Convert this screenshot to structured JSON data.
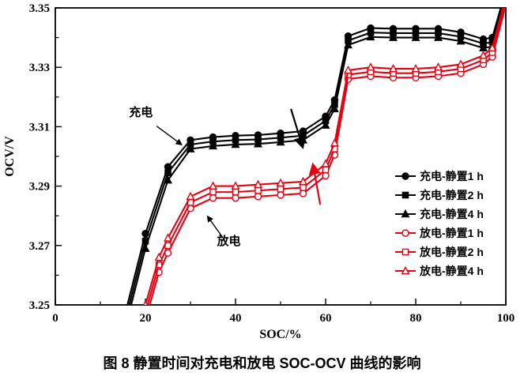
{
  "caption": "图 8  静置时间对充电和放电 SOC-OCV 曲线的影响",
  "annotations": {
    "charge_label": {
      "text": "充电",
      "soc": 19,
      "ocv": 3.3135
    },
    "discharge_label": {
      "text": "放电",
      "soc": 38.5,
      "ocv": 3.2702
    }
  },
  "arrows": [
    {
      "name": "charge-pointer-arrow",
      "color": "#000000",
      "width": 1.4,
      "head": 6,
      "from": [
        22.5,
        3.3102
      ],
      "to": [
        28,
        3.304
      ]
    },
    {
      "name": "discharge-pointer-arrow",
      "color": "#000000",
      "width": 1.4,
      "head": 6,
      "from": [
        37.2,
        3.2726
      ],
      "to": [
        33.8,
        3.2798
      ]
    },
    {
      "name": "rest-time-trend-arrow-charge",
      "color": "#000000",
      "width": 2.2,
      "head": 7,
      "from": [
        52.3,
        3.316
      ],
      "to": [
        54.9,
        3.3032
      ]
    },
    {
      "name": "rest-time-trend-arrow-discharge",
      "color": "#e60012",
      "width": 2.2,
      "head": 7,
      "from": [
        58.8,
        3.2838
      ],
      "to": [
        57.2,
        3.2972
      ]
    }
  ],
  "chart_data": {
    "type": "line",
    "title": "",
    "xlabel": "SOC/%",
    "ylabel": "OCV/V",
    "xlim": [
      0,
      100
    ],
    "ylim": [
      3.25,
      3.35
    ],
    "xticks": [
      0,
      20,
      40,
      60,
      80,
      100
    ],
    "xminor": [
      10,
      30,
      50,
      70,
      90
    ],
    "yticks": [
      3.25,
      3.27,
      3.29,
      3.31,
      3.33,
      3.35
    ],
    "yminor": [
      3.26,
      3.28,
      3.3,
      3.32,
      3.34
    ],
    "grid": false,
    "legend_position": "right-center",
    "series": [
      {
        "name": "充电-静置1 h",
        "color": "#000000",
        "marker": "circle",
        "filled": true,
        "points": [
          [
            16,
            3.25
          ],
          [
            20,
            3.274
          ],
          [
            25,
            3.2965
          ],
          [
            30,
            3.3055
          ],
          [
            35,
            3.3065
          ],
          [
            40,
            3.307
          ],
          [
            45,
            3.3072
          ],
          [
            50,
            3.3078
          ],
          [
            55,
            3.3085
          ],
          [
            60,
            3.3135
          ],
          [
            62,
            3.319
          ],
          [
            65,
            3.3405
          ],
          [
            70,
            3.3432
          ],
          [
            75,
            3.343
          ],
          [
            80,
            3.343
          ],
          [
            85,
            3.343
          ],
          [
            90,
            3.3418
          ],
          [
            95,
            3.3395
          ],
          [
            97,
            3.34
          ],
          [
            100,
            3.356
          ]
        ]
      },
      {
        "name": "充电-静置2 h",
        "color": "#000000",
        "marker": "square",
        "filled": true,
        "points": [
          [
            16,
            3.2475
          ],
          [
            20,
            3.2715
          ],
          [
            25,
            3.2945
          ],
          [
            30,
            3.304
          ],
          [
            35,
            3.305
          ],
          [
            40,
            3.3055
          ],
          [
            45,
            3.3057
          ],
          [
            50,
            3.3063
          ],
          [
            55,
            3.307
          ],
          [
            60,
            3.312
          ],
          [
            62,
            3.3175
          ],
          [
            65,
            3.339
          ],
          [
            70,
            3.3417
          ],
          [
            75,
            3.3415
          ],
          [
            80,
            3.3415
          ],
          [
            85,
            3.3415
          ],
          [
            90,
            3.3403
          ],
          [
            95,
            3.338
          ],
          [
            97,
            3.3385
          ],
          [
            100,
            3.3545
          ]
        ]
      },
      {
        "name": "充电-静置4 h",
        "color": "#000000",
        "marker": "triangle",
        "filled": true,
        "points": [
          [
            16,
            3.245
          ],
          [
            20,
            3.269
          ],
          [
            25,
            3.292
          ],
          [
            30,
            3.3025
          ],
          [
            35,
            3.3035
          ],
          [
            40,
            3.304
          ],
          [
            45,
            3.3042
          ],
          [
            50,
            3.3048
          ],
          [
            55,
            3.3055
          ],
          [
            60,
            3.3105
          ],
          [
            62,
            3.316
          ],
          [
            65,
            3.3375
          ],
          [
            70,
            3.3402
          ],
          [
            75,
            3.34
          ],
          [
            80,
            3.34
          ],
          [
            85,
            3.34
          ],
          [
            90,
            3.3388
          ],
          [
            95,
            3.3365
          ],
          [
            97,
            3.337
          ],
          [
            100,
            3.353
          ]
        ]
      },
      {
        "name": "放电-静置1 h",
        "color": "#e60012",
        "marker": "circle",
        "filled": false,
        "points": [
          [
            20,
            3.245
          ],
          [
            23,
            3.261
          ],
          [
            25,
            3.2675
          ],
          [
            30,
            3.2825
          ],
          [
            35,
            3.286
          ],
          [
            40,
            3.286
          ],
          [
            45,
            3.2865
          ],
          [
            50,
            3.287
          ],
          [
            55,
            3.2875
          ],
          [
            60,
            3.2935
          ],
          [
            62,
            3.3005
          ],
          [
            65,
            3.326
          ],
          [
            70,
            3.327
          ],
          [
            75,
            3.3265
          ],
          [
            80,
            3.3265
          ],
          [
            85,
            3.327
          ],
          [
            90,
            3.328
          ],
          [
            95,
            3.331
          ],
          [
            97,
            3.3335
          ],
          [
            100,
            3.351
          ]
        ]
      },
      {
        "name": "放电-静置2 h",
        "color": "#e60012",
        "marker": "square",
        "filled": false,
        "points": [
          [
            20,
            3.2475
          ],
          [
            23,
            3.2635
          ],
          [
            25,
            3.27
          ],
          [
            30,
            3.2845
          ],
          [
            35,
            3.288
          ],
          [
            40,
            3.288
          ],
          [
            45,
            3.2885
          ],
          [
            50,
            3.289
          ],
          [
            55,
            3.2895
          ],
          [
            60,
            3.2955
          ],
          [
            62,
            3.3025
          ],
          [
            65,
            3.3275
          ],
          [
            70,
            3.3285
          ],
          [
            75,
            3.328
          ],
          [
            80,
            3.328
          ],
          [
            85,
            3.3285
          ],
          [
            90,
            3.3295
          ],
          [
            95,
            3.3325
          ],
          [
            97,
            3.335
          ],
          [
            100,
            3.3525
          ]
        ]
      },
      {
        "name": "放电-静置4 h",
        "color": "#e60012",
        "marker": "triangle",
        "filled": false,
        "points": [
          [
            20,
            3.25
          ],
          [
            23,
            3.266
          ],
          [
            25,
            3.2725
          ],
          [
            30,
            3.2865
          ],
          [
            35,
            3.29
          ],
          [
            40,
            3.29
          ],
          [
            45,
            3.2905
          ],
          [
            50,
            3.291
          ],
          [
            55,
            3.2915
          ],
          [
            60,
            3.2975
          ],
          [
            62,
            3.3045
          ],
          [
            65,
            3.329
          ],
          [
            70,
            3.33
          ],
          [
            75,
            3.3295
          ],
          [
            80,
            3.3295
          ],
          [
            85,
            3.33
          ],
          [
            90,
            3.331
          ],
          [
            95,
            3.334
          ],
          [
            97,
            3.3365
          ],
          [
            100,
            3.354
          ]
        ]
      }
    ]
  }
}
